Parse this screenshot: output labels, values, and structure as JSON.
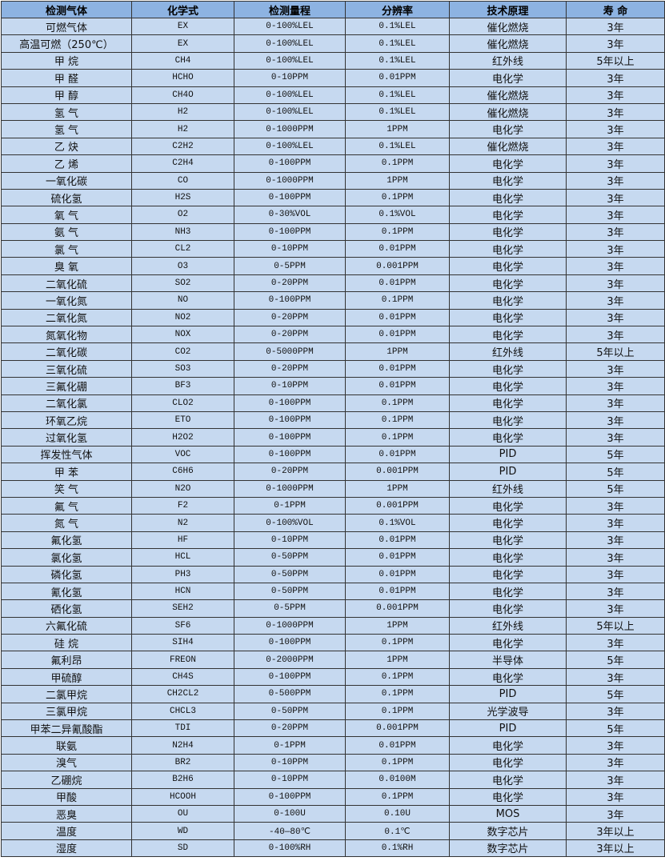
{
  "headers": [
    "检测气体",
    "化学式",
    "检测量程",
    "分辨率",
    "技术原理",
    "寿 命"
  ],
  "rows": [
    [
      "可燃气体",
      "EX",
      "0-100%LEL",
      "0.1%LEL",
      "催化燃烧",
      "3年"
    ],
    [
      "高温可燃（250℃）",
      "EX",
      "0-100%LEL",
      "0.1%LEL",
      "催化燃烧",
      "3年"
    ],
    [
      "甲 烷",
      "CH4",
      "0-100%LEL",
      "0.1%LEL",
      "红外线",
      "5年以上"
    ],
    [
      "甲 醛",
      "HCHO",
      "0-10PPM",
      "0.01PPM",
      "电化学",
      "3年"
    ],
    [
      "甲 醇",
      "CH4O",
      "0-100%LEL",
      "0.1%LEL",
      "催化燃烧",
      "3年"
    ],
    [
      "氢 气",
      "H2",
      "0-100%LEL",
      "0.1%LEL",
      "催化燃烧",
      "3年"
    ],
    [
      "氢 气",
      "H2",
      "0-1000PPM",
      "1PPM",
      "电化学",
      "3年"
    ],
    [
      "乙 炔",
      "C2H2",
      "0-100%LEL",
      "0.1%LEL",
      "催化燃烧",
      "3年"
    ],
    [
      "乙 烯",
      "C2H4",
      "0-100PPM",
      "0.1PPM",
      "电化学",
      "3年"
    ],
    [
      "一氧化碳",
      "CO",
      "0-1000PPM",
      "1PPM",
      "电化学",
      "3年"
    ],
    [
      "硫化氢",
      "H2S",
      "0-100PPM",
      "0.1PPM",
      "电化学",
      "3年"
    ],
    [
      "氧 气",
      "O2",
      "0-30%VOL",
      "0.1%VOL",
      "电化学",
      "3年"
    ],
    [
      "氨 气",
      "NH3",
      "0-100PPM",
      "0.1PPM",
      "电化学",
      "3年"
    ],
    [
      "氯 气",
      "CL2",
      "0-10PPM",
      "0.01PPM",
      "电化学",
      "3年"
    ],
    [
      "臭 氧",
      "O3",
      "0-5PPM",
      "0.001PPM",
      "电化学",
      "3年"
    ],
    [
      "二氧化硫",
      "SO2",
      "0-20PPM",
      "0.01PPM",
      "电化学",
      "3年"
    ],
    [
      "一氧化氮",
      "NO",
      "0-100PPM",
      "0.1PPM",
      "电化学",
      "3年"
    ],
    [
      "二氧化氮",
      "NO2",
      "0-20PPM",
      "0.01PPM",
      "电化学",
      "3年"
    ],
    [
      "氮氧化物",
      "NOX",
      "0-20PPM",
      "0.01PPM",
      "电化学",
      "3年"
    ],
    [
      "二氧化碳",
      "CO2",
      "0-5000PPM",
      "1PPM",
      "红外线",
      "5年以上"
    ],
    [
      "三氧化硫",
      "SO3",
      "0-20PPM",
      "0.01PPM",
      "电化学",
      "3年"
    ],
    [
      "三氟化硼",
      "BF3",
      "0-10PPM",
      "0.01PPM",
      "电化学",
      "3年"
    ],
    [
      "二氧化氯",
      "CLO2",
      "0-100PPM",
      "0.1PPM",
      "电化学",
      "3年"
    ],
    [
      "环氧乙烷",
      "ETO",
      "0-100PPM",
      "0.1PPM",
      "电化学",
      "3年"
    ],
    [
      "过氧化氢",
      "H2O2",
      "0-100PPM",
      "0.1PPM",
      "电化学",
      "3年"
    ],
    [
      "挥发性气体",
      "VOC",
      "0-100PPM",
      "0.01PPM",
      "PID",
      "5年"
    ],
    [
      "甲 苯",
      "C6H6",
      "0-20PPM",
      "0.001PPM",
      "PID",
      "5年"
    ],
    [
      "笑 气",
      "N2O",
      "0-1000PPM",
      "1PPM",
      "红外线",
      "5年"
    ],
    [
      "氟 气",
      "F2",
      "0-1PPM",
      "0.001PPM",
      "电化学",
      "3年"
    ],
    [
      "氮 气",
      "N2",
      "0-100%VOL",
      "0.1%VOL",
      "电化学",
      "3年"
    ],
    [
      "氟化氢",
      "HF",
      "0-10PPM",
      "0.01PPM",
      "电化学",
      "3年"
    ],
    [
      "氯化氢",
      "HCL",
      "0-50PPM",
      "0.01PPM",
      "电化学",
      "3年"
    ],
    [
      "磷化氢",
      "PH3",
      "0-50PPM",
      "0.01PPM",
      "电化学",
      "3年"
    ],
    [
      "氰化氢",
      "HCN",
      "0-50PPM",
      "0.01PPM",
      "电化学",
      "3年"
    ],
    [
      "硒化氢",
      "SEH2",
      "0-5PPM",
      "0.001PPM",
      "电化学",
      "3年"
    ],
    [
      "六氟化硫",
      "SF6",
      "0-1000PPM",
      "1PPM",
      "红外线",
      "5年以上"
    ],
    [
      "硅 烷",
      "SIH4",
      "0-100PPM",
      "0.1PPM",
      "电化学",
      "3年"
    ],
    [
      "氟利昂",
      "FREON",
      "0-2000PPM",
      "1PPM",
      "半导体",
      "5年"
    ],
    [
      "甲硫醇",
      "CH4S",
      "0-100PPM",
      "0.1PPM",
      "电化学",
      "3年"
    ],
    [
      "二氯甲烷",
      "CH2CL2",
      "0-500PPM",
      "0.1PPM",
      "PID",
      "5年"
    ],
    [
      "三氯甲烷",
      "CHCL3",
      "0-50PPM",
      "0.1PPM",
      "光学波导",
      "3年"
    ],
    [
      "甲苯二异氰酸酯",
      "TDI",
      "0-20PPM",
      "0.001PPM",
      "PID",
      "5年"
    ],
    [
      "联氨",
      "N2H4",
      "0-1PPM",
      "0.01PPM",
      "电化学",
      "3年"
    ],
    [
      "溴气",
      "BR2",
      "0-10PPM",
      "0.1PPM",
      "电化学",
      "3年"
    ],
    [
      "乙硼烷",
      "B2H6",
      "0-10PPM",
      "0.0100M",
      "电化学",
      "3年"
    ],
    [
      "甲酸",
      "HCOOH",
      "0-100PPM",
      "0.1PPM",
      "电化学",
      "3年"
    ],
    [
      "恶臭",
      "OU",
      "0-100U",
      "0.10U",
      "MOS",
      "3年"
    ],
    [
      "温度",
      "WD",
      "-40—80℃",
      "0.1℃",
      "数字芯片",
      "3年以上"
    ],
    [
      "湿度",
      "SD",
      "0-100%RH",
      "0.1%RH",
      "数字芯片",
      "3年以上"
    ]
  ]
}
